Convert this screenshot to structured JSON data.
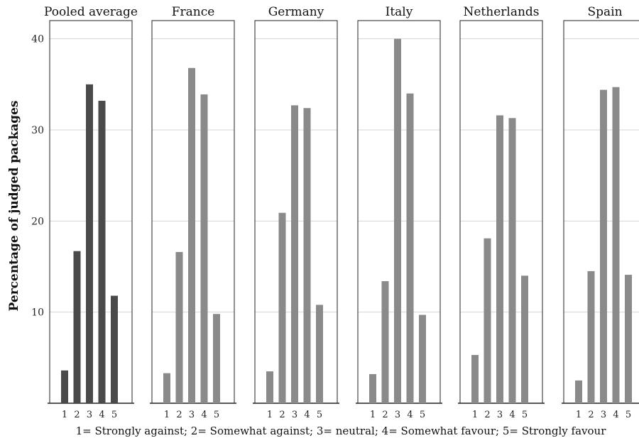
{
  "chart_data": {
    "type": "bar",
    "ylabel": "Percentage of judged packages",
    "xlabel": "1= Strongly against; 2= Somewhat against; 3= neutral; 4= Somewhat favour; 5= Strongly favour",
    "categories": [
      "1",
      "2",
      "3",
      "4",
      "5"
    ],
    "y_ticks": [
      10,
      20,
      30,
      40
    ],
    "ylim": [
      0,
      42
    ],
    "grid": "horizontal",
    "panels": [
      {
        "name": "Pooled average",
        "values": [
          3.6,
          16.7,
          35.0,
          33.2,
          11.8
        ],
        "color": "#4a4a4a"
      },
      {
        "name": "France",
        "values": [
          3.3,
          16.6,
          36.8,
          33.9,
          9.8
        ],
        "color": "#8a8a8a"
      },
      {
        "name": "Germany",
        "values": [
          3.5,
          20.9,
          32.7,
          32.4,
          10.8
        ],
        "color": "#8a8a8a"
      },
      {
        "name": "Italy",
        "values": [
          3.2,
          13.4,
          40.0,
          34.0,
          9.7
        ],
        "color": "#8a8a8a"
      },
      {
        "name": "Netherlands",
        "values": [
          5.3,
          18.1,
          31.6,
          31.3,
          14.0
        ],
        "color": "#8a8a8a"
      },
      {
        "name": "Spain",
        "values": [
          2.5,
          14.5,
          34.4,
          34.7,
          14.1
        ],
        "color": "#8a8a8a"
      }
    ]
  }
}
